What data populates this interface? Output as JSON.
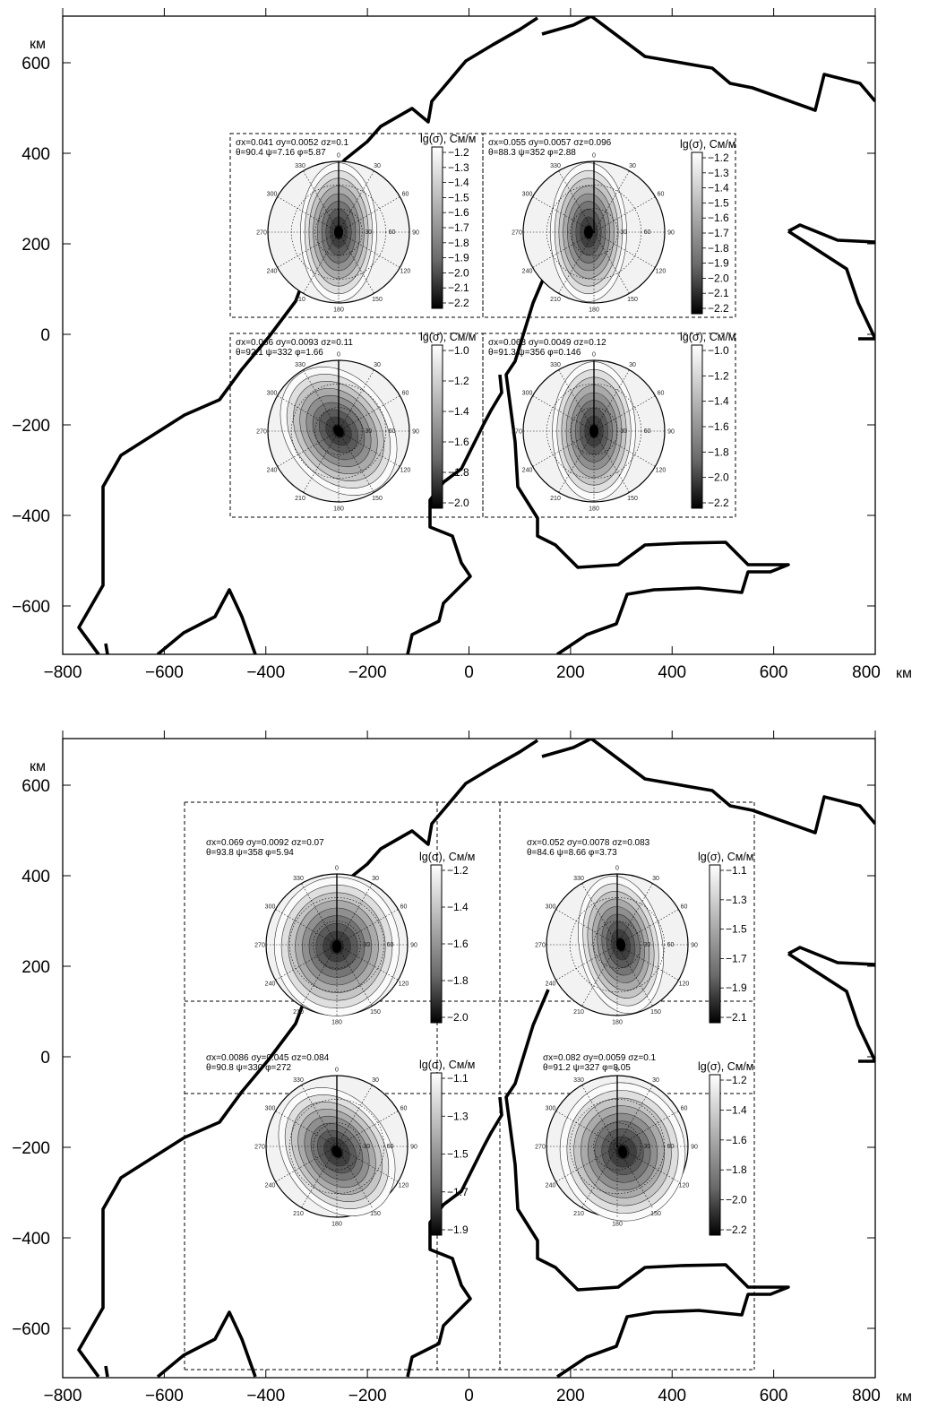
{
  "panels": [
    {
      "name": "top",
      "x_ticks": [
        "−800",
        "−600",
        "−400",
        "−200",
        "0",
        "200",
        "400",
        "600",
        "800"
      ],
      "x_unit": "км",
      "y_ticks": [
        "600",
        "400",
        "200",
        "0",
        "−200",
        "−400",
        "−600"
      ],
      "y_unit": "км",
      "insets": [
        {
          "ann1": "σx=0.041 σy=0.0052 σz=0.1",
          "ann2": "θ=90.4 ψ=7.16 φ=5.87",
          "cb_title": "lg(σ), См/м",
          "cb_labels": [
            "−1.2",
            "−1.3",
            "−1.4",
            "−1.5",
            "−1.6",
            "−1.7",
            "−1.8",
            "−1.9",
            "−2.0",
            "−2.1",
            "−2.2"
          ]
        },
        {
          "ann1": "σx=0.055 σy=0.0057 σz=0.096",
          "ann2": "θ=88.3 ψ=352 φ=2.88",
          "cb_title": "lg(σ), См/м",
          "cb_labels": [
            "−1.2",
            "−1.3",
            "−1.4",
            "−1.5",
            "−1.6",
            "−1.7",
            "−1.8",
            "−1.9",
            "−2.0",
            "−2.1",
            "−2.2"
          ]
        },
        {
          "ann1": "σx=0.066 σy=0.0093 σz=0.11",
          "ann2": "θ=92.1 ψ=332 φ=1.66",
          "cb_title": "lg(σ), См/м",
          "cb_labels": [
            "−1.0",
            "−1.2",
            "−1.4",
            "−1.6",
            "−1.8",
            "−2.0"
          ]
        },
        {
          "ann1": "σx=0.063 σy=0.0049 σz=0.12",
          "ann2": "θ=91.3 ψ=356 φ=0.146",
          "cb_title": "lg(σ), См/м",
          "cb_labels": [
            "−1.0",
            "−1.2",
            "−1.4",
            "−1.6",
            "−1.8",
            "−2.0",
            "−2.2"
          ]
        }
      ]
    },
    {
      "name": "bottom",
      "x_ticks": [
        "−800",
        "−600",
        "−400",
        "−200",
        "0",
        "200",
        "400",
        "600",
        "800"
      ],
      "x_unit": "км",
      "y_ticks": [
        "600",
        "400",
        "200",
        "0",
        "−200",
        "−400",
        "−600"
      ],
      "y_unit": "км",
      "insets": [
        {
          "ann1": "σx=0.069 σy=0.0092 σz=0.07",
          "ann2": "θ=93.8 ψ=358 φ=5.94",
          "cb_title": "lg(σ), См/м",
          "cb_labels": [
            "−1.2",
            "−1.4",
            "−1.6",
            "−1.8",
            "−2.0"
          ]
        },
        {
          "ann1": "σx=0.052 σy=0.0078 σz=0.083",
          "ann2": "θ=84.6 ψ=8.66 φ=3.73",
          "cb_title": "lg(σ), См/м",
          "cb_labels": [
            "−1.1",
            "−1.3",
            "−1.5",
            "−1.7",
            "−1.9",
            "−2.1"
          ]
        },
        {
          "ann1": "σx=0.0086 σy=0.045 σz=0.084",
          "ann2": "θ=90.8 ψ=330 φ=272",
          "cb_title": "lg(σ), См/м",
          "cb_labels": [
            "−1.1",
            "−1.3",
            "−1.5",
            "−1.7",
            "−1.9"
          ]
        },
        {
          "ann1": "σx=0.082 σy=0.0059 σz=0.1",
          "ann2": "θ=91.2 ψ=327 φ=8.05",
          "cb_title": "lg(σ), См/м",
          "cb_labels": [
            "−1.2",
            "−1.4",
            "−1.6",
            "−1.8",
            "−2.0",
            "−2.2"
          ]
        }
      ]
    }
  ],
  "polar_azimuths": [
    "0",
    "30",
    "60",
    "90",
    "120",
    "150",
    "180",
    "210",
    "240",
    "270",
    "300",
    "330"
  ],
  "polar_rings": [
    "30",
    "60"
  ],
  "colors": {
    "coast": "#000000",
    "frame": "#000000",
    "dash": "#000000"
  }
}
